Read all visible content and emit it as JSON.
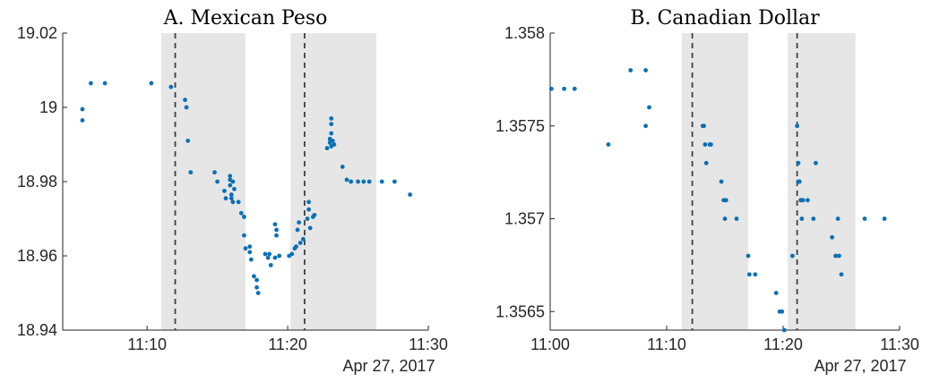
{
  "chart_data": [
    {
      "type": "scatter",
      "title": "A. Mexican Peso",
      "xlabel": "",
      "ylabel": "",
      "date_label": "Apr 27, 2017",
      "xlim": [
        "11:04",
        "11:30"
      ],
      "ylim": [
        18.94,
        19.02
      ],
      "x_ticks": [
        "11:10",
        "11:20",
        "11:30"
      ],
      "y_ticks": [
        18.94,
        18.96,
        18.98,
        19,
        19.02
      ],
      "y_tick_labels": [
        "18.94",
        "18.96",
        "18.98",
        "19",
        "19.02"
      ],
      "grid": false,
      "shaded_regions": [
        [
          "11:11",
          "11:17"
        ],
        [
          "11:20.2",
          "11:26.3"
        ]
      ],
      "event_lines": [
        "11:12",
        "11:21.2"
      ],
      "color": "#0a70b6",
      "points": [
        [
          "11:05.4",
          18.9995
        ],
        [
          "11:05.4",
          18.9965
        ],
        [
          "11:06",
          19.0065
        ],
        [
          "11:07",
          19.0065
        ],
        [
          "11:10.3",
          19.0065
        ],
        [
          "11:11.7",
          19.0055
        ],
        [
          "11:12.7",
          19.002
        ],
        [
          "11:12.8",
          19.0
        ],
        [
          "11:12.9",
          18.991
        ],
        [
          "11:13.1",
          18.9825
        ],
        [
          "11:14.8",
          18.9825
        ],
        [
          "11:15",
          18.98
        ],
        [
          "11:15.5",
          18.9775
        ],
        [
          "11:15.6",
          18.9755
        ],
        [
          "11:15.9",
          18.9815
        ],
        [
          "11:15.9",
          18.9805
        ],
        [
          "11:15.9",
          18.979
        ],
        [
          "11:16",
          18.9765
        ],
        [
          "11:16",
          18.9755
        ],
        [
          "11:16.1",
          18.9745
        ],
        [
          "11:16.1",
          18.98
        ],
        [
          "11:16.2",
          18.978
        ],
        [
          "11:16.5",
          18.9745
        ],
        [
          "11:16.7",
          18.9715
        ],
        [
          "11:16.9",
          18.9705
        ],
        [
          "11:16.9",
          18.9655
        ],
        [
          "11:17",
          18.962
        ],
        [
          "11:17.3",
          18.9625
        ],
        [
          "11:17.3",
          18.961
        ],
        [
          "11:17.4",
          18.959
        ],
        [
          "11:17.6",
          18.9545
        ],
        [
          "11:17.8",
          18.9535
        ],
        [
          "11:17.8",
          18.9515
        ],
        [
          "11:17.9",
          18.95
        ],
        [
          "11:18.4",
          18.9605
        ],
        [
          "11:18.6",
          18.9595
        ],
        [
          "11:18.7",
          18.9605
        ],
        [
          "11:18.8",
          18.9575
        ],
        [
          "11:19.1",
          18.9595
        ],
        [
          "11:19.1",
          18.9685
        ],
        [
          "11:19.2",
          18.967
        ],
        [
          "11:19.2",
          18.9655
        ],
        [
          "11:19.4",
          18.96
        ],
        [
          "11:20.1",
          18.96
        ],
        [
          "11:20.3",
          18.9605
        ],
        [
          "11:20.5",
          18.962
        ],
        [
          "11:20.6",
          18.9625
        ],
        [
          "11:20.7",
          18.967
        ],
        [
          "11:20.8",
          18.969
        ],
        [
          "11:20.9",
          18.9635
        ],
        [
          "11:21.1",
          18.9645
        ],
        [
          "11:21.4",
          18.97
        ],
        [
          "11:21.5",
          18.9745
        ],
        [
          "11:21.5",
          18.9725
        ],
        [
          "11:21.6",
          18.9675
        ],
        [
          "11:21.8",
          18.9705
        ],
        [
          "11:21.9",
          18.971
        ],
        [
          "11:22.8",
          18.989
        ],
        [
          "11:23",
          18.9915
        ],
        [
          "11:23",
          18.9905
        ],
        [
          "11:23.1",
          18.9895
        ],
        [
          "11:23.1",
          18.997
        ],
        [
          "11:23.1",
          18.9955
        ],
        [
          "11:23.1",
          18.993
        ],
        [
          "11:23.2",
          18.991
        ],
        [
          "11:23.3",
          18.99
        ],
        [
          "11:23.9",
          18.984
        ],
        [
          "11:24.2",
          18.9805
        ],
        [
          "11:24.5",
          18.98
        ],
        [
          "11:25",
          18.98
        ],
        [
          "11:25.4",
          18.98
        ],
        [
          "11:25.8",
          18.98
        ],
        [
          "11:26.7",
          18.98
        ],
        [
          "11:27.6",
          18.98
        ],
        [
          "11:28.7",
          18.9765
        ]
      ]
    },
    {
      "type": "scatter",
      "title": "B. Canadian Dollar",
      "xlabel": "",
      "ylabel": "",
      "date_label": "Apr 27, 2017",
      "xlim": [
        "11:00",
        "11:30"
      ],
      "ylim": [
        1.3564,
        1.358
      ],
      "x_ticks": [
        "11:00",
        "11:10",
        "11:20",
        "11:30"
      ],
      "y_ticks": [
        1.3565,
        1.357,
        1.3575,
        1.358
      ],
      "y_tick_labels": [
        "1.3565",
        "1.357",
        "1.3575",
        "1.358"
      ],
      "grid": false,
      "shaded_regions": [
        [
          "11:11.3",
          "11:17"
        ],
        [
          "11:20.4",
          "11:26.2"
        ]
      ],
      "event_lines": [
        "11:12.2",
        "11:21.2"
      ],
      "color": "#0a70b6",
      "points": [
        [
          "11:00.1",
          1.3577
        ],
        [
          "11:01.2",
          1.3577
        ],
        [
          "11:02.1",
          1.3577
        ],
        [
          "11:05",
          1.3574
        ],
        [
          "11:06.9",
          1.3578
        ],
        [
          "11:08.2",
          1.3578
        ],
        [
          "11:08.2",
          1.3575
        ],
        [
          "11:08.5",
          1.3576
        ],
        [
          "11:13.1",
          1.3575
        ],
        [
          "11:13.2",
          1.3575
        ],
        [
          "11:13.3",
          1.3574
        ],
        [
          "11:13.7",
          1.3574
        ],
        [
          "11:13.8",
          1.3574
        ],
        [
          "11:13.4",
          1.3573
        ],
        [
          "11:14.7",
          1.3572
        ],
        [
          "11:14.9",
          1.3571
        ],
        [
          "11:15.1",
          1.3571
        ],
        [
          "11:15",
          1.357
        ],
        [
          "11:16",
          1.357
        ],
        [
          "11:17",
          1.3568
        ],
        [
          "11:17.1",
          1.3567
        ],
        [
          "11:17.6",
          1.3567
        ],
        [
          "11:19.4",
          1.3566
        ],
        [
          "11:19.7",
          1.3565
        ],
        [
          "11:19.9",
          1.3565
        ],
        [
          "11:20.1",
          1.3564
        ],
        [
          "11:20.8",
          1.3568
        ],
        [
          "11:21.2",
          1.3575
        ],
        [
          "11:21.3",
          1.3573
        ],
        [
          "11:21.3",
          1.3572
        ],
        [
          "11:21.4",
          1.3572
        ],
        [
          "11:21.5",
          1.3571
        ],
        [
          "11:21.6",
          1.3571
        ],
        [
          "11:21.6",
          1.357
        ],
        [
          "11:21.7",
          1.3571
        ],
        [
          "11:22.1",
          1.3571
        ],
        [
          "11:22.8",
          1.3573
        ],
        [
          "11:22.6",
          1.357
        ],
        [
          "11:24.2",
          1.3569
        ],
        [
          "11:24.5",
          1.3568
        ],
        [
          "11:24.7",
          1.357
        ],
        [
          "11:24.8",
          1.3568
        ],
        [
          "11:25",
          1.3567
        ],
        [
          "11:27",
          1.357
        ],
        [
          "11:28.7",
          1.357
        ]
      ]
    }
  ]
}
